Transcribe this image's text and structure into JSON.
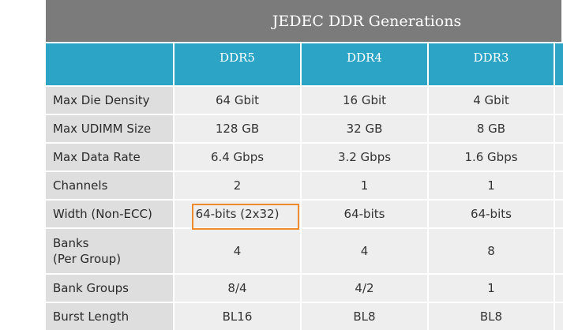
{
  "header": {
    "title": "JEDEC DDR Generations"
  },
  "table": {
    "columns": [
      "DDR5",
      "DDR4",
      "DDR3"
    ],
    "rows": [
      [
        "Max Die Density",
        "64 Gbit",
        "16 Gbit",
        "4 Gbit"
      ],
      [
        "Max UDIMM Size",
        "128 GB",
        "32 GB",
        "8 GB"
      ],
      [
        "Max Data Rate",
        "6.4 Gbps",
        "3.2 Gbps",
        "1.6 Gbps"
      ],
      [
        "Channels",
        "2",
        "1",
        "1"
      ],
      [
        "Width (Non-ECC)",
        "64-bits (2x32)",
        "64-bits",
        "64-bits"
      ],
      [
        "Banks\n(Per Group)",
        "4",
        "4",
        "8"
      ],
      [
        "Bank Groups",
        "8/4",
        "4/2",
        "1"
      ],
      [
        "Burst Length",
        "BL16",
        "BL8",
        "BL8"
      ]
    ]
  }
}
